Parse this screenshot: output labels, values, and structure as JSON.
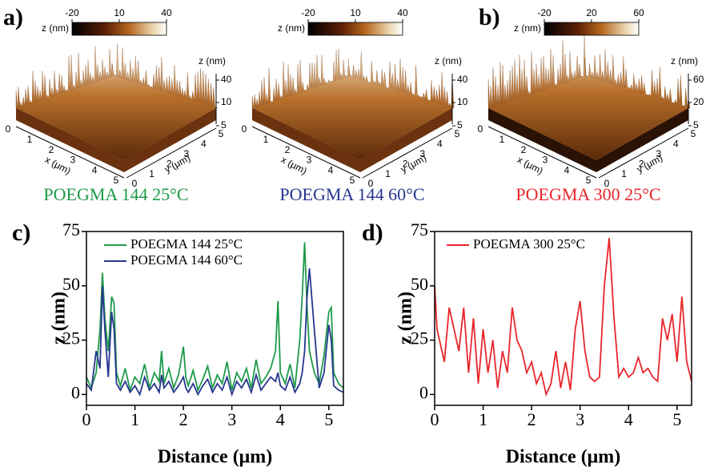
{
  "panel_labels": [
    "a)",
    "b)"
  ],
  "panels": [
    {
      "caption": "POEGMA 144 25°C",
      "caption_color": "#1e9a4a",
      "colorbar_label": "z (nm)",
      "colorbar_range": [
        -20,
        40
      ],
      "colorbar_ticks": [
        -20,
        10,
        40
      ],
      "z_label": "z (nm)",
      "z_ticks": [
        40,
        10,
        5
      ],
      "x_ticks": [
        0,
        1,
        2,
        3,
        4,
        5
      ],
      "y_ticks": [
        0,
        1,
        2,
        3,
        4,
        5
      ],
      "x_label": "x (μm)",
      "y_label": "y (μm)"
    },
    {
      "caption": "POEGMA 144 60°C",
      "caption_color": "#27368f",
      "colorbar_label": "z (nm)",
      "colorbar_range": [
        -20,
        40
      ],
      "colorbar_ticks": [
        -20,
        10,
        40
      ],
      "z_label": "z (nm)",
      "z_ticks": [
        40,
        10,
        5
      ],
      "x_ticks": [
        0,
        1,
        2,
        3,
        4,
        5
      ],
      "y_ticks": [
        0,
        1,
        2,
        3,
        4,
        5
      ],
      "x_label": "x (μm)",
      "y_label": "y (μm)"
    },
    {
      "caption": "POEGMA 300 25°C",
      "caption_color": "#e8262b",
      "colorbar_label": "z (nm)",
      "colorbar_range": [
        -20,
        60
      ],
      "colorbar_ticks": [
        -20,
        20,
        60
      ],
      "z_label": "z (nm)",
      "z_ticks": [
        60,
        20,
        5
      ],
      "x_ticks": [
        0,
        1,
        2,
        3,
        4,
        5
      ],
      "y_ticks": [
        0,
        1,
        2,
        3,
        4,
        5
      ],
      "x_label": "x (μm)",
      "y_label": "y (μm)"
    }
  ],
  "chart_data": [
    {
      "type": "line",
      "panel_label": "c)",
      "x_label": "Distance (μm)",
      "y_label": "z (nm)",
      "xlim": [
        0,
        5.3
      ],
      "ylim": [
        -5,
        75
      ],
      "xticks": [
        0,
        1,
        2,
        3,
        4,
        5
      ],
      "yticks": [
        0,
        25,
        50,
        75
      ],
      "x": [
        0,
        0.1,
        0.2,
        0.28,
        0.33,
        0.38,
        0.45,
        0.52,
        0.57,
        0.62,
        0.7,
        0.8,
        0.9,
        1.0,
        1.1,
        1.2,
        1.3,
        1.4,
        1.5,
        1.55,
        1.6,
        1.7,
        1.8,
        1.9,
        2.0,
        2.05,
        2.1,
        2.2,
        2.3,
        2.4,
        2.5,
        2.6,
        2.7,
        2.8,
        2.9,
        3.0,
        3.1,
        3.2,
        3.3,
        3.4,
        3.5,
        3.6,
        3.7,
        3.8,
        3.9,
        3.95,
        4.0,
        4.1,
        4.2,
        4.3,
        4.4,
        4.45,
        4.5,
        4.55,
        4.6,
        4.7,
        4.8,
        4.9,
        5.0,
        5.05,
        5.1,
        5.2,
        5.3
      ],
      "series": [
        {
          "name": "POEGMA 144 25°C",
          "color": "#1e9a4a",
          "values": [
            8,
            3,
            10,
            30,
            56,
            35,
            20,
            45,
            42,
            10,
            4,
            12,
            2,
            8,
            5,
            14,
            3,
            10,
            6,
            20,
            5,
            12,
            3,
            9,
            22,
            8,
            4,
            11,
            2,
            7,
            13,
            3,
            9,
            5,
            15,
            2,
            10,
            6,
            12,
            3,
            16,
            5,
            8,
            12,
            20,
            43,
            10,
            5,
            14,
            3,
            25,
            45,
            70,
            40,
            20,
            10,
            5,
            18,
            38,
            40,
            10,
            5,
            3
          ]
        },
        {
          "name": "POEGMA 144 60°C",
          "color": "#27368f",
          "values": [
            5,
            2,
            20,
            12,
            50,
            30,
            8,
            38,
            30,
            5,
            2,
            6,
            1,
            4,
            0,
            8,
            2,
            5,
            1,
            9,
            3,
            6,
            1,
            4,
            8,
            3,
            1,
            5,
            0,
            4,
            7,
            1,
            5,
            2,
            8,
            0,
            6,
            3,
            7,
            1,
            9,
            2,
            5,
            8,
            6,
            10,
            4,
            2,
            8,
            1,
            5,
            10,
            20,
            45,
            58,
            30,
            3,
            10,
            32,
            25,
            4,
            2,
            1
          ]
        }
      ]
    },
    {
      "type": "line",
      "panel_label": "d)",
      "x_label": "Distance (μm)",
      "y_label": "z (nm)",
      "xlim": [
        0,
        5.3
      ],
      "ylim": [
        -5,
        75
      ],
      "xticks": [
        0,
        1,
        2,
        3,
        4,
        5
      ],
      "yticks": [
        0,
        25,
        50,
        75
      ],
      "x": [
        0,
        0.05,
        0.1,
        0.2,
        0.3,
        0.4,
        0.5,
        0.6,
        0.7,
        0.8,
        0.9,
        1.0,
        1.1,
        1.2,
        1.3,
        1.4,
        1.5,
        1.6,
        1.7,
        1.8,
        1.9,
        2.0,
        2.1,
        2.2,
        2.3,
        2.4,
        2.5,
        2.6,
        2.7,
        2.8,
        2.9,
        3.0,
        3.1,
        3.2,
        3.3,
        3.4,
        3.5,
        3.6,
        3.7,
        3.8,
        3.9,
        4.0,
        4.1,
        4.2,
        4.3,
        4.4,
        4.5,
        4.6,
        4.7,
        4.8,
        4.9,
        5.0,
        5.1,
        5.2,
        5.3
      ],
      "series": [
        {
          "name": "POEGMA 300 25°C",
          "color": "#e8262b",
          "values": [
            50,
            30,
            25,
            15,
            40,
            30,
            20,
            40,
            10,
            35,
            5,
            30,
            10,
            25,
            3,
            20,
            10,
            40,
            25,
            20,
            10,
            15,
            5,
            10,
            0,
            5,
            20,
            3,
            15,
            2,
            30,
            43,
            20,
            8,
            6,
            8,
            50,
            72,
            35,
            8,
            12,
            8,
            10,
            17,
            10,
            12,
            8,
            6,
            35,
            25,
            37,
            15,
            45,
            15,
            6
          ]
        }
      ]
    }
  ]
}
